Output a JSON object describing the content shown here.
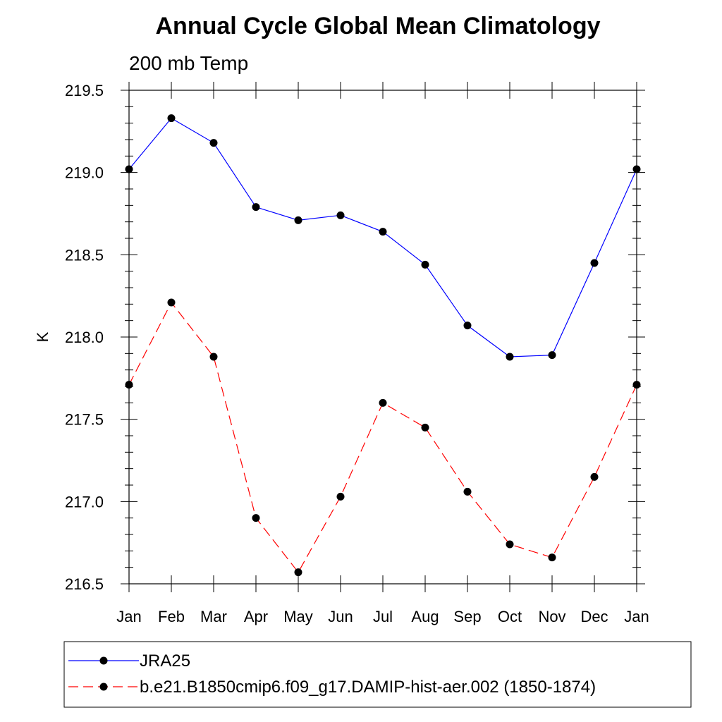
{
  "chart_data": {
    "type": "line",
    "title": "Annual Cycle Global Mean Climatology",
    "subtitle": "200 mb Temp",
    "ylabel": "K",
    "xlabel": "",
    "categories": [
      "Jan",
      "Feb",
      "Mar",
      "Apr",
      "May",
      "Jun",
      "Jul",
      "Aug",
      "Sep",
      "Oct",
      "Nov",
      "Dec",
      "Jan"
    ],
    "ylim": [
      216.5,
      219.5
    ],
    "yticks": [
      "216.5",
      "217.0",
      "217.5",
      "218.0",
      "218.5",
      "219.0",
      "219.5"
    ],
    "grid": false,
    "legend_position": "bottom",
    "series": [
      {
        "name": "JRA25",
        "color": "#0000ff",
        "dash": "solid",
        "marker": "circle",
        "values": [
          219.02,
          219.33,
          219.18,
          218.79,
          218.71,
          218.74,
          218.64,
          218.44,
          218.07,
          217.88,
          217.89,
          218.45,
          219.02
        ]
      },
      {
        "name": "b.e21.B1850cmip6.f09_g17.DAMIP-hist-aer.002 (1850-1874)",
        "color": "#ff0000",
        "dash": "dashed",
        "marker": "circle",
        "values": [
          217.71,
          218.21,
          217.88,
          216.9,
          216.57,
          217.03,
          217.6,
          217.45,
          217.06,
          216.74,
          216.66,
          217.15,
          217.71
        ]
      }
    ]
  }
}
